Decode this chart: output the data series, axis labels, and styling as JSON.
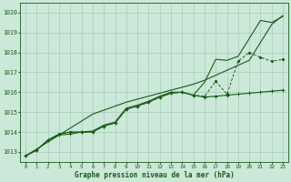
{
  "title": "Graphe pression niveau de la mer (hPa)",
  "background_color": "#cbe8d8",
  "grid_color": "#a8ccbb",
  "line_color": "#1a5c1a",
  "x_labels": [
    "0",
    "1",
    "2",
    "3",
    "4",
    "5",
    "6",
    "7",
    "8",
    "9",
    "10",
    "11",
    "12",
    "13",
    "14",
    "15",
    "16",
    "17",
    "18",
    "19",
    "20",
    "21",
    "22",
    "23"
  ],
  "ylim": [
    1012.5,
    1020.5
  ],
  "yticks": [
    1013,
    1014,
    1015,
    1016,
    1017,
    1018,
    1019,
    1020
  ],
  "series_straight": [
    1012.8,
    1013.15,
    1013.5,
    1013.85,
    1014.2,
    1014.55,
    1014.9,
    1015.1,
    1015.3,
    1015.5,
    1015.65,
    1015.8,
    1015.95,
    1016.1,
    1016.25,
    1016.4,
    1016.6,
    1016.85,
    1017.1,
    1017.35,
    1017.6,
    1018.5,
    1019.4,
    1019.85
  ],
  "series_main": [
    1012.8,
    1013.1,
    1013.6,
    1013.85,
    1013.9,
    1014.0,
    1014.0,
    1014.3,
    1014.45,
    1015.15,
    1015.3,
    1015.5,
    1015.75,
    1015.95,
    1016.0,
    1015.85,
    1015.75,
    1015.8,
    1015.85,
    1015.9,
    1015.95,
    1016.0,
    1016.05,
    1016.1
  ],
  "series_upper": [
    1012.8,
    1013.1,
    1013.6,
    1013.9,
    1014.0,
    1014.0,
    1014.05,
    1014.35,
    1014.5,
    1015.2,
    1015.35,
    1015.55,
    1015.8,
    1016.0,
    1016.0,
    1015.85,
    1016.5,
    1017.65,
    1017.6,
    1017.8,
    1018.7,
    1019.6,
    1019.5,
    1019.8
  ],
  "series_dashed": [
    1012.8,
    1013.1,
    1013.6,
    1013.9,
    1014.0,
    1014.0,
    1014.0,
    1014.3,
    1014.45,
    1015.15,
    1015.3,
    1015.5,
    1015.75,
    1015.95,
    1016.0,
    1015.85,
    1015.8,
    1016.55,
    1015.9,
    1017.55,
    1018.0,
    1017.75,
    1017.55,
    1017.65
  ]
}
